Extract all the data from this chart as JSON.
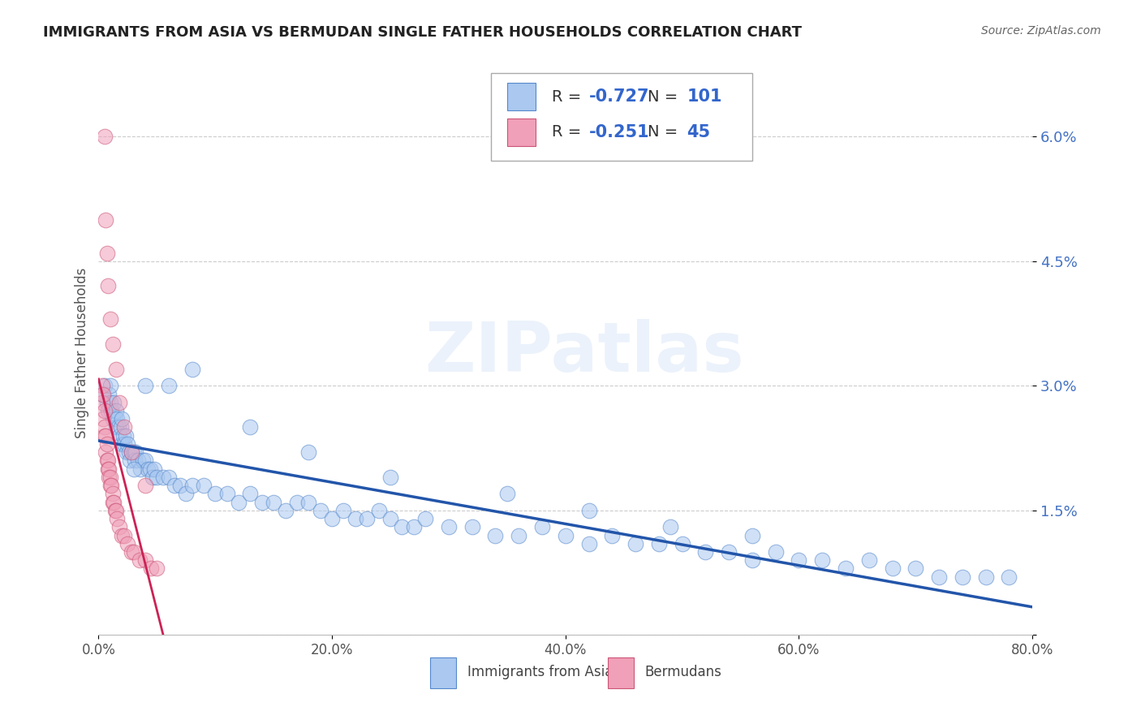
{
  "title": "IMMIGRANTS FROM ASIA VS BERMUDAN SINGLE FATHER HOUSEHOLDS CORRELATION CHART",
  "source": "Source: ZipAtlas.com",
  "ylabel": "Single Father Households",
  "xlim": [
    0.0,
    0.8
  ],
  "ylim": [
    0.0,
    0.068
  ],
  "yticks": [
    0.0,
    0.015,
    0.03,
    0.045,
    0.06
  ],
  "ytick_labels": [
    "",
    "1.5%",
    "3.0%",
    "4.5%",
    "6.0%"
  ],
  "xticks": [
    0.0,
    0.2,
    0.4,
    0.6,
    0.8
  ],
  "xtick_labels": [
    "0.0%",
    "20.0%",
    "40.0%",
    "60.0%",
    "80.0%"
  ],
  "legend_labels": [
    "Immigrants from Asia",
    "Bermudans"
  ],
  "blue_R": -0.727,
  "blue_N": 101,
  "pink_R": -0.251,
  "pink_N": 45,
  "blue_color": "#aac8f0",
  "pink_color": "#f0a0b8",
  "blue_edge_color": "#5588cc",
  "pink_edge_color": "#cc5577",
  "blue_line_color": "#2255aa",
  "pink_line_color": "#cc2255",
  "watermark": "ZIPatlas",
  "background_color": "#ffffff",
  "grid_color": "#cccccc",
  "title_color": "#222222",
  "source_color": "#666666",
  "axis_label_color": "#555555",
  "ytick_color": "#4472c4",
  "blue_scatter_x": [
    0.003,
    0.005,
    0.007,
    0.008,
    0.009,
    0.01,
    0.01,
    0.011,
    0.012,
    0.013,
    0.014,
    0.015,
    0.015,
    0.016,
    0.017,
    0.018,
    0.019,
    0.02,
    0.02,
    0.021,
    0.022,
    0.023,
    0.024,
    0.025,
    0.026,
    0.027,
    0.028,
    0.03,
    0.031,
    0.032,
    0.034,
    0.036,
    0.038,
    0.04,
    0.042,
    0.044,
    0.046,
    0.048,
    0.05,
    0.055,
    0.06,
    0.065,
    0.07,
    0.075,
    0.08,
    0.09,
    0.1,
    0.11,
    0.12,
    0.13,
    0.14,
    0.15,
    0.16,
    0.17,
    0.18,
    0.19,
    0.2,
    0.21,
    0.22,
    0.23,
    0.24,
    0.25,
    0.26,
    0.27,
    0.28,
    0.3,
    0.32,
    0.34,
    0.36,
    0.38,
    0.4,
    0.42,
    0.44,
    0.46,
    0.48,
    0.5,
    0.52,
    0.54,
    0.56,
    0.58,
    0.6,
    0.62,
    0.64,
    0.66,
    0.68,
    0.7,
    0.72,
    0.74,
    0.76,
    0.78,
    0.04,
    0.08,
    0.13,
    0.18,
    0.25,
    0.35,
    0.42,
    0.49,
    0.56,
    0.03,
    0.06
  ],
  "blue_scatter_y": [
    0.029,
    0.03,
    0.028,
    0.027,
    0.029,
    0.03,
    0.028,
    0.027,
    0.026,
    0.028,
    0.026,
    0.027,
    0.025,
    0.026,
    0.025,
    0.024,
    0.025,
    0.026,
    0.023,
    0.024,
    0.023,
    0.024,
    0.022,
    0.023,
    0.022,
    0.021,
    0.022,
    0.022,
    0.021,
    0.022,
    0.021,
    0.02,
    0.021,
    0.021,
    0.02,
    0.02,
    0.019,
    0.02,
    0.019,
    0.019,
    0.019,
    0.018,
    0.018,
    0.017,
    0.018,
    0.018,
    0.017,
    0.017,
    0.016,
    0.017,
    0.016,
    0.016,
    0.015,
    0.016,
    0.016,
    0.015,
    0.014,
    0.015,
    0.014,
    0.014,
    0.015,
    0.014,
    0.013,
    0.013,
    0.014,
    0.013,
    0.013,
    0.012,
    0.012,
    0.013,
    0.012,
    0.011,
    0.012,
    0.011,
    0.011,
    0.011,
    0.01,
    0.01,
    0.009,
    0.01,
    0.009,
    0.009,
    0.008,
    0.009,
    0.008,
    0.008,
    0.007,
    0.007,
    0.007,
    0.007,
    0.03,
    0.032,
    0.025,
    0.022,
    0.019,
    0.017,
    0.015,
    0.013,
    0.012,
    0.02,
    0.03
  ],
  "pink_scatter_x": [
    0.003,
    0.003,
    0.004,
    0.004,
    0.005,
    0.005,
    0.005,
    0.006,
    0.006,
    0.007,
    0.007,
    0.008,
    0.008,
    0.009,
    0.009,
    0.01,
    0.01,
    0.011,
    0.012,
    0.012,
    0.013,
    0.014,
    0.015,
    0.016,
    0.018,
    0.02,
    0.022,
    0.025,
    0.028,
    0.03,
    0.035,
    0.04,
    0.045,
    0.05,
    0.005,
    0.006,
    0.007,
    0.008,
    0.01,
    0.012,
    0.015,
    0.018,
    0.022,
    0.028,
    0.04
  ],
  "pink_scatter_y": [
    0.03,
    0.028,
    0.029,
    0.026,
    0.027,
    0.025,
    0.024,
    0.024,
    0.022,
    0.023,
    0.021,
    0.021,
    0.02,
    0.02,
    0.019,
    0.019,
    0.018,
    0.018,
    0.017,
    0.016,
    0.016,
    0.015,
    0.015,
    0.014,
    0.013,
    0.012,
    0.012,
    0.011,
    0.01,
    0.01,
    0.009,
    0.009,
    0.008,
    0.008,
    0.06,
    0.05,
    0.046,
    0.042,
    0.038,
    0.035,
    0.032,
    0.028,
    0.025,
    0.022,
    0.018
  ]
}
